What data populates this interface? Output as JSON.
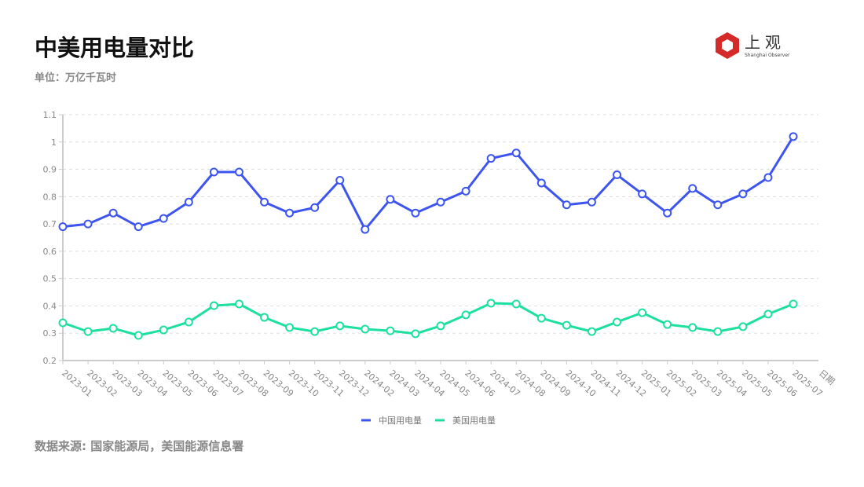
{
  "header": {
    "title": "中美用电量对比",
    "unit": "单位：万亿千瓦时"
  },
  "footer": {
    "source": "数据来源: 国家能源局，美国能源信息署"
  },
  "logo": {
    "text": "上观",
    "subtitle": "Shanghai Observer"
  },
  "chart_data": {
    "type": "line",
    "title": "中美用电量对比",
    "xlabel": "日期",
    "ylabel": "万亿千瓦时",
    "ylim": [
      0.2,
      1.1
    ],
    "yticks": [
      "0.2",
      "0.3",
      "0.4",
      "0.5",
      "0.6",
      "0.7",
      "0.8",
      "0.9",
      "1",
      "1.1"
    ],
    "grid": true,
    "legend_position": "bottom",
    "x": [
      "2023-01",
      "2023-02",
      "2023-03",
      "2023-04",
      "2023-05",
      "2023-06",
      "2023-07",
      "2023-08",
      "2023-09",
      "2023-10",
      "2023-11",
      "2023-12",
      "2024-02",
      "2024-03",
      "2024-04",
      "2024-05",
      "2024-06",
      "2024-07",
      "2024-08",
      "2024-09",
      "2024-10",
      "2024-11",
      "2024-12",
      "2025-01",
      "2025-02",
      "2025-03",
      "2025-04",
      "2025-05",
      "2025-06",
      "2025-07"
    ],
    "series": [
      {
        "name": "中国用电量",
        "color": "#3d55ee",
        "values": [
          0.69,
          0.7,
          0.74,
          0.69,
          0.72,
          0.78,
          0.89,
          0.89,
          0.78,
          0.74,
          0.76,
          0.86,
          0.68,
          0.79,
          0.74,
          0.78,
          0.82,
          0.94,
          0.96,
          0.85,
          0.77,
          0.78,
          0.88,
          0.81,
          0.74,
          0.83,
          0.77,
          0.81,
          0.87,
          1.02
        ]
      },
      {
        "name": "美国用电量",
        "color": "#1de0a0",
        "values": [
          0.338,
          0.306,
          0.318,
          0.292,
          0.312,
          0.341,
          0.401,
          0.407,
          0.358,
          0.321,
          0.306,
          0.327,
          0.315,
          0.309,
          0.298,
          0.327,
          0.367,
          0.41,
          0.407,
          0.355,
          0.329,
          0.306,
          0.341,
          0.375,
          0.332,
          0.321,
          0.306,
          0.324,
          0.37,
          0.407
        ]
      }
    ]
  }
}
